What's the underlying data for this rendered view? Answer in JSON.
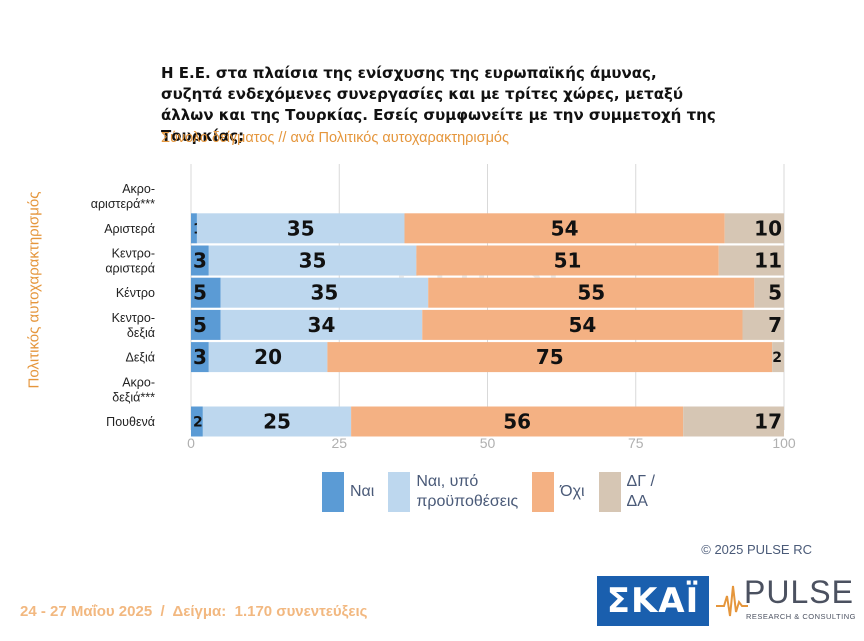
{
  "title": "Η Ε.Ε. στα πλαίσια της ενίσχυσης της ευρωπαϊκής άμυνας, συζητά ενδεχόμενες συνεργασίες και με τρίτες χώρες, μεταξύ άλλων και της Τουρκίας. Εσείς συμφωνείτε με την συμμετοχή της Τουρκίας;",
  "subtitle": "Σύνολο δείγματος // ανά Πολιτικός αυτοχαρακτηρισμός",
  "yaxis_title": "Πολιτικός αυτοχαρακτηρισμός",
  "colors": {
    "yes": "#5B9BD5",
    "yes_conditional": "#BDD7EE",
    "no": "#F4B183",
    "dk": "#D6C6B4",
    "accent": "#E5963C"
  },
  "chart_data": {
    "type": "bar",
    "orientation": "horizontal",
    "stacked": true,
    "categories": [
      [
        "Ακρο-",
        "αριστερά***"
      ],
      [
        "Αριστερά"
      ],
      [
        "Κεντρο-",
        "αριστερά"
      ],
      [
        "Κέντρο"
      ],
      [
        "Κεντρο-",
        "δεξιά"
      ],
      [
        "Δεξιά"
      ],
      [
        "Ακρο-",
        "δεξιά***"
      ],
      [
        "Πουθενά"
      ]
    ],
    "series": [
      {
        "name": "Ναι",
        "color_key": "yes",
        "values": [
          null,
          1,
          3,
          5,
          5,
          3,
          null,
          2
        ]
      },
      {
        "name": "Ναι, υπό προϋποθέσεις",
        "color_key": "yes_conditional",
        "values": [
          null,
          35,
          35,
          35,
          34,
          20,
          null,
          25
        ]
      },
      {
        "name": "Όχι",
        "color_key": "no",
        "values": [
          null,
          54,
          51,
          55,
          54,
          75,
          null,
          56
        ]
      },
      {
        "name": "ΔΓ / ΔΑ",
        "color_key": "dk",
        "values": [
          null,
          10,
          11,
          5,
          7,
          2,
          null,
          17
        ]
      }
    ],
    "xlim": [
      0,
      100
    ],
    "xticks": [
      0,
      25,
      50,
      75,
      100
    ],
    "grid": true
  },
  "legend": [
    {
      "lines": [
        "Ναι"
      ],
      "color_key": "yes"
    },
    {
      "lines": [
        "Ναι, υπό",
        "προϋποθέσεις"
      ],
      "color_key": "yes_conditional"
    },
    {
      "lines": [
        "Όχι"
      ],
      "color_key": "no"
    },
    {
      "lines": [
        "ΔΓ /",
        "ΔΑ"
      ],
      "color_key": "dk"
    }
  ],
  "copyright": "©  2025  PULSE RC",
  "footer": "24 - 27 Μαΐου 2025  /  Δείγμα:  1.170 συνεντεύξεις",
  "watermark": "PULSE",
  "logos": {
    "skai": "ΣΚΑΪ",
    "pulse": "PULSE",
    "pulse_sub": "RESEARCH & CONSULTING"
  }
}
